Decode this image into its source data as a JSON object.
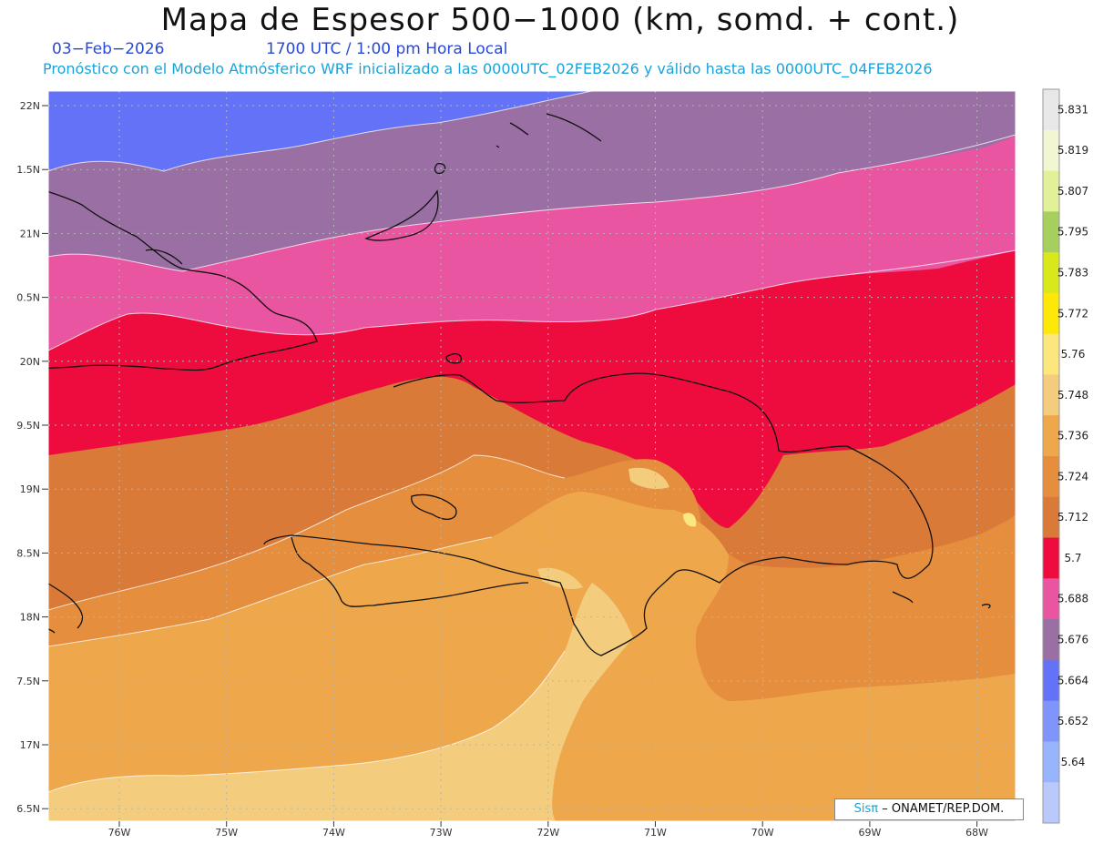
{
  "title": "Mapa de Espesor 500−1000 (km, somd. + cont.)",
  "date": "03−Feb−2026",
  "time": "1700 UTC / 1:00 pm Hora Local",
  "model_line": "Pronóstico con el Modelo Atmósferico WRF inicializado a las 0000UTC_02FEB2026 y válido hasta las  0000UTC_04FEB2026",
  "lat_labels": [
    "22N",
    "1.5N",
    "21N",
    "0.5N",
    "20N",
    "9.5N",
    "19N",
    "8.5N",
    "18N",
    "7.5N",
    "17N",
    "6.5N"
  ],
  "lon_labels": [
    "76W",
    "75W",
    "74W",
    "73W",
    "72W",
    "71W",
    "70W",
    "69W",
    "68W"
  ],
  "colorbar": {
    "labels": [
      "5.831",
      "5.819",
      "5.807",
      "5.795",
      "5.783",
      "5.772",
      "5.76",
      "5.748",
      "5.736",
      "5.724",
      "5.712",
      "5.7",
      "5.688",
      "5.676",
      "5.664",
      "5.652",
      "5.64"
    ],
    "colors": [
      "#e8e8e8",
      "#f2f6d2",
      "#e2f09a",
      "#a7cf5e",
      "#d8e81a",
      "#fde80a",
      "#fbe77e",
      "#f3cc7e",
      "#eea74a",
      "#e58e3e",
      "#d97a38",
      "#ee0c3e",
      "#e955a0",
      "#9a6fa4",
      "#6472f8",
      "#7f95fb",
      "#97b4fd",
      "#b9c9fc"
    ]
  },
  "credit": {
    "brand": "Sisπ",
    "text": "– ONAMET/REP.DOM."
  }
}
